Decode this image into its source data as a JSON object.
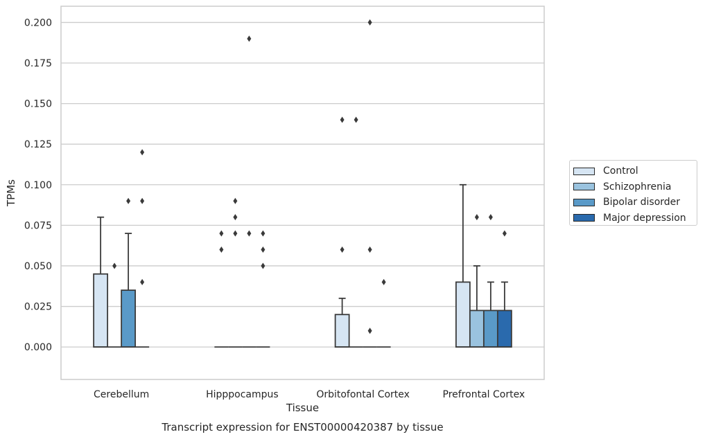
{
  "chart_data": {
    "type": "box",
    "title": "",
    "xlabel": "Tissue",
    "ylabel": "TPMs",
    "caption": "Transcript expression for ENST00000420387 by tissue",
    "ylim": [
      -0.02,
      0.21
    ],
    "yticks": [
      "0.000",
      "0.025",
      "0.050",
      "0.075",
      "0.100",
      "0.125",
      "0.150",
      "0.175",
      "0.200"
    ],
    "categories": [
      "Cerebellum",
      "Hipppocampus",
      "Orbitofontal Cortex",
      "Prefrontal Cortex"
    ],
    "grid": true,
    "legend_position": "right",
    "series": [
      {
        "name": "Control",
        "color": "#d6e5f3",
        "boxes": [
          {
            "q1": 0,
            "median": 0,
            "q3": 0.045,
            "whisker_low": 0,
            "whisker_high": 0.08,
            "outliers": []
          },
          {
            "q1": 0,
            "median": 0,
            "q3": 0,
            "whisker_low": 0,
            "whisker_high": 0,
            "outliers": [
              0.06,
              0.07
            ]
          },
          {
            "q1": 0,
            "median": 0,
            "q3": 0.02,
            "whisker_low": 0,
            "whisker_high": 0.03,
            "outliers": [
              0.06,
              0.14
            ]
          },
          {
            "q1": 0,
            "median": 0,
            "q3": 0.04,
            "whisker_low": 0,
            "whisker_high": 0.1,
            "outliers": []
          }
        ]
      },
      {
        "name": "Schizophrenia",
        "color": "#9ac3df",
        "boxes": [
          {
            "q1": 0,
            "median": 0,
            "q3": 0,
            "whisker_low": 0,
            "whisker_high": 0,
            "outliers": [
              0.05
            ]
          },
          {
            "q1": 0,
            "median": 0,
            "q3": 0,
            "whisker_low": 0,
            "whisker_high": 0,
            "outliers": [
              0.07,
              0.08,
              0.09
            ]
          },
          {
            "q1": 0,
            "median": 0,
            "q3": 0,
            "whisker_low": 0,
            "whisker_high": 0,
            "outliers": [
              0.14
            ]
          },
          {
            "q1": 0,
            "median": 0,
            "q3": 0.0225,
            "whisker_low": 0,
            "whisker_high": 0.05,
            "outliers": [
              0.08
            ]
          }
        ]
      },
      {
        "name": "Bipolar disorder",
        "color": "#5a9ac8",
        "boxes": [
          {
            "q1": 0,
            "median": 0,
            "q3": 0.035,
            "whisker_low": 0,
            "whisker_high": 0.07,
            "outliers": [
              0.09
            ]
          },
          {
            "q1": 0,
            "median": 0,
            "q3": 0,
            "whisker_low": 0,
            "whisker_high": 0,
            "outliers": [
              0.07,
              0.19
            ]
          },
          {
            "q1": 0,
            "median": 0,
            "q3": 0,
            "whisker_low": 0,
            "whisker_high": 0,
            "outliers": [
              0.01,
              0.06,
              0.2
            ]
          },
          {
            "q1": 0,
            "median": 0,
            "q3": 0.0225,
            "whisker_low": 0,
            "whisker_high": 0.04,
            "outliers": [
              0.08
            ]
          }
        ]
      },
      {
        "name": "Major depression",
        "color": "#2a6aad",
        "boxes": [
          {
            "q1": 0,
            "median": 0,
            "q3": 0,
            "whisker_low": 0,
            "whisker_high": 0,
            "outliers": [
              0.04,
              0.09,
              0.12
            ]
          },
          {
            "q1": 0,
            "median": 0,
            "q3": 0,
            "whisker_low": 0,
            "whisker_high": 0,
            "outliers": [
              0.05,
              0.06,
              0.07
            ]
          },
          {
            "q1": 0,
            "median": 0,
            "q3": 0,
            "whisker_low": 0,
            "whisker_high": 0,
            "outliers": [
              0.04
            ]
          },
          {
            "q1": 0,
            "median": 0,
            "q3": 0.0225,
            "whisker_low": 0,
            "whisker_high": 0.04,
            "outliers": [
              0.07
            ]
          }
        ]
      }
    ]
  }
}
